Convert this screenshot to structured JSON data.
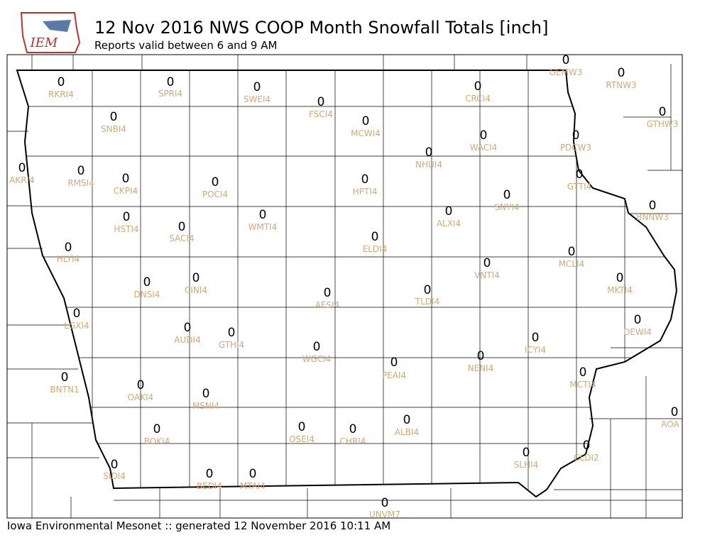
{
  "header": {
    "logo_text": "IEM",
    "title": "12 Nov 2016 NWS COOP Month Snowfall Totals [inch]",
    "subtitle": "Reports valid between 6 and 9 AM"
  },
  "stations": [
    {
      "id": "RKRI4",
      "value": 0
    },
    {
      "id": "SPRI4",
      "value": 0
    },
    {
      "id": "SWEI4",
      "value": 0
    },
    {
      "id": "FSCI4",
      "value": 0
    },
    {
      "id": "MCWI4",
      "value": 0
    },
    {
      "id": "CRCI4",
      "value": 0
    },
    {
      "id": "GEMW3",
      "value": 0
    },
    {
      "id": "RTNW3",
      "value": 0
    },
    {
      "id": "GTHW3",
      "value": 0
    },
    {
      "id": "PDCW3",
      "value": 0
    },
    {
      "id": "WACI4",
      "value": 0
    },
    {
      "id": "NHUI4",
      "value": 0
    },
    {
      "id": "SNBI4",
      "value": 0
    },
    {
      "id": "AKRI4",
      "value": 0
    },
    {
      "id": "RMSI4",
      "value": 0
    },
    {
      "id": "CKPI4",
      "value": 0
    },
    {
      "id": "POCI4",
      "value": 0
    },
    {
      "id": "HPTI4",
      "value": 0
    },
    {
      "id": "GTTI4",
      "value": 0
    },
    {
      "id": "SNYI4",
      "value": 0
    },
    {
      "id": "BNNW3",
      "value": 0
    },
    {
      "id": "ALXI4",
      "value": 0
    },
    {
      "id": "HSTI4",
      "value": 0
    },
    {
      "id": "SACI4",
      "value": 0
    },
    {
      "id": "WMTI4",
      "value": 0
    },
    {
      "id": "ELDI4",
      "value": 0
    },
    {
      "id": "HLYI4",
      "value": 0
    },
    {
      "id": "MCLI4",
      "value": 0
    },
    {
      "id": "VNTI4",
      "value": 0
    },
    {
      "id": "DNSI4",
      "value": 0
    },
    {
      "id": "CINI4",
      "value": 0
    },
    {
      "id": "AESI4",
      "value": 0
    },
    {
      "id": "TLDI4",
      "value": 0
    },
    {
      "id": "MKTI4",
      "value": 0
    },
    {
      "id": "LGXI4",
      "value": 0
    },
    {
      "id": "DEWI4",
      "value": 0
    },
    {
      "id": "AUDI4",
      "value": 0
    },
    {
      "id": "GTHI4",
      "value": 0
    },
    {
      "id": "WGCI4",
      "value": 0
    },
    {
      "id": "ICYI4",
      "value": 0
    },
    {
      "id": "NENI4",
      "value": 0
    },
    {
      "id": "PEAI4",
      "value": 0
    },
    {
      "id": "MCTI4",
      "value": 0
    },
    {
      "id": "BNTN1",
      "value": 0
    },
    {
      "id": "OAKI4",
      "value": 0
    },
    {
      "id": "MSNI4",
      "value": 0
    },
    {
      "id": "AOA",
      "value": 0
    },
    {
      "id": "BOKI4",
      "value": 0
    },
    {
      "id": "OSEI4",
      "value": 0
    },
    {
      "id": "CHRI4",
      "value": 0
    },
    {
      "id": "ALBI4",
      "value": 0
    },
    {
      "id": "SLHI4",
      "value": 0
    },
    {
      "id": "CLDI2",
      "value": 0
    },
    {
      "id": "SIDI4",
      "value": 0
    },
    {
      "id": "BEDI4",
      "value": 0
    },
    {
      "id": "MTAI4",
      "value": 0
    },
    {
      "id": "UNVM7",
      "value": 0
    }
  ],
  "footer": "Iowa Environmental Mesonet :: generated 12 November 2016 10:11 AM"
}
